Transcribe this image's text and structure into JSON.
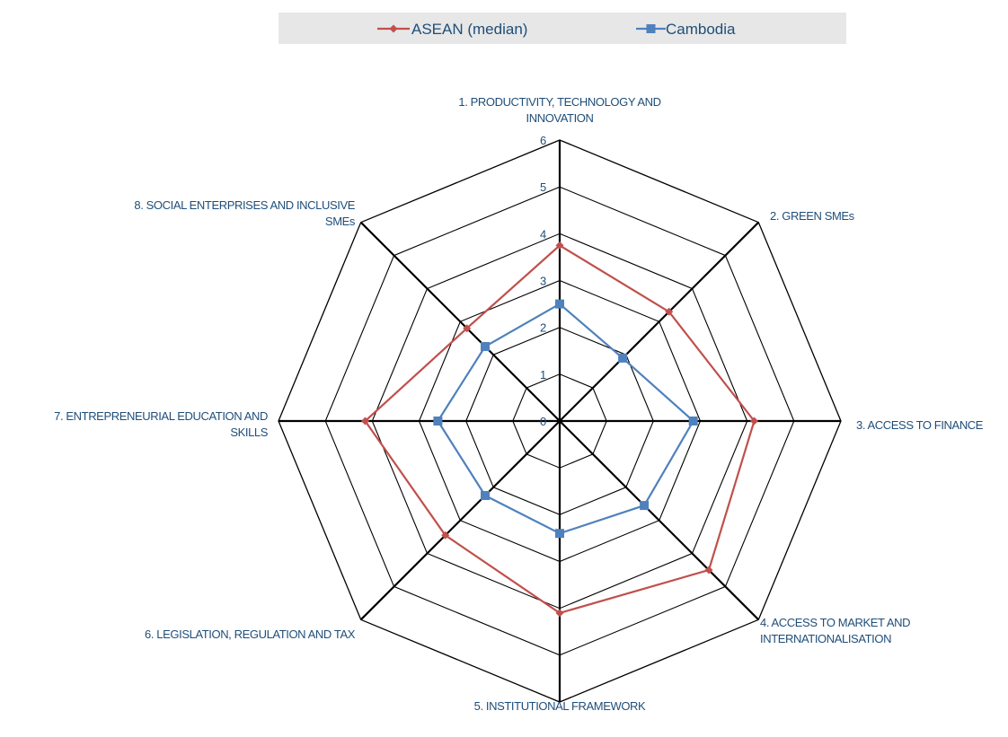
{
  "chart_data": {
    "type": "radar",
    "axes": [
      [
        "1. PRODUCTIVITY, TECHNOLOGY AND",
        "INNOVATION"
      ],
      [
        "2. GREEN SMEs"
      ],
      [
        "3. ACCESS TO FINANCE"
      ],
      [
        "4. ACCESS TO MARKET AND",
        "INTERNATIONALISATION"
      ],
      [
        "5. INSTITUTIONAL FRAMEWORK"
      ],
      [
        "6. LEGISLATION, REGULATION AND TAX"
      ],
      [
        "7. ENTREPRENEURIAL EDUCATION AND",
        "SKILLS"
      ],
      [
        "8. SOCIAL ENTERPRISES AND INCLUSIVE",
        "SMEs"
      ]
    ],
    "ticks": [
      "0",
      "1",
      "2",
      "3",
      "4",
      "5",
      "6"
    ],
    "range": [
      0,
      6
    ],
    "series": [
      {
        "name": "ASEAN (median)",
        "color": "#c0504d",
        "marker": "diamond",
        "values": [
          3.75,
          3.3,
          4.15,
          4.5,
          4.1,
          3.45,
          4.15,
          2.8
        ]
      },
      {
        "name": "Cambodia",
        "color": "#4f81bd",
        "marker": "square",
        "values": [
          2.5,
          1.9,
          2.85,
          2.55,
          2.4,
          2.25,
          2.6,
          2.25
        ]
      }
    ],
    "legend_position": "top"
  }
}
